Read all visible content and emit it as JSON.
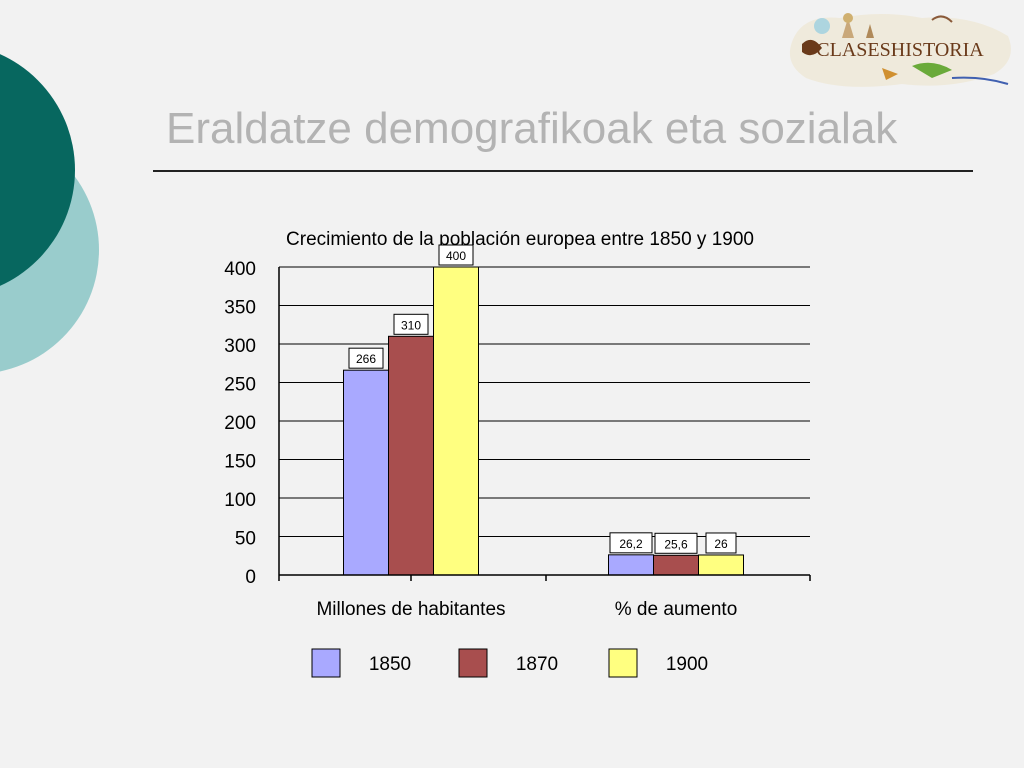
{
  "slide": {
    "title": "Eraldatze demografikoak eta sozialak",
    "logo_text": "CLASESHISTORIA"
  },
  "colors": {
    "deco_dark": "#07675f",
    "deco_light": "#99cccc",
    "series_1850": "#a9a9ff",
    "series_1870": "#a84e4e",
    "series_1900": "#ffff80"
  },
  "chart_data": {
    "type": "bar",
    "title": "Crecimiento de la población europea entre 1850 y 1900",
    "categories": [
      "Millones de habitantes",
      "% de aumento"
    ],
    "series": [
      {
        "name": "1850",
        "values": [
          266,
          26.2
        ],
        "labels": [
          "266",
          "26,2"
        ]
      },
      {
        "name": "1870",
        "values": [
          310,
          25.6
        ],
        "labels": [
          "310",
          "25,6"
        ]
      },
      {
        "name": "1900",
        "values": [
          400,
          26
        ],
        "labels": [
          "400",
          "26"
        ]
      }
    ],
    "ylim": [
      0,
      400
    ],
    "yticks": [
      0,
      50,
      100,
      150,
      200,
      250,
      300,
      350,
      400
    ],
    "grid": true,
    "legend": "bottom"
  }
}
